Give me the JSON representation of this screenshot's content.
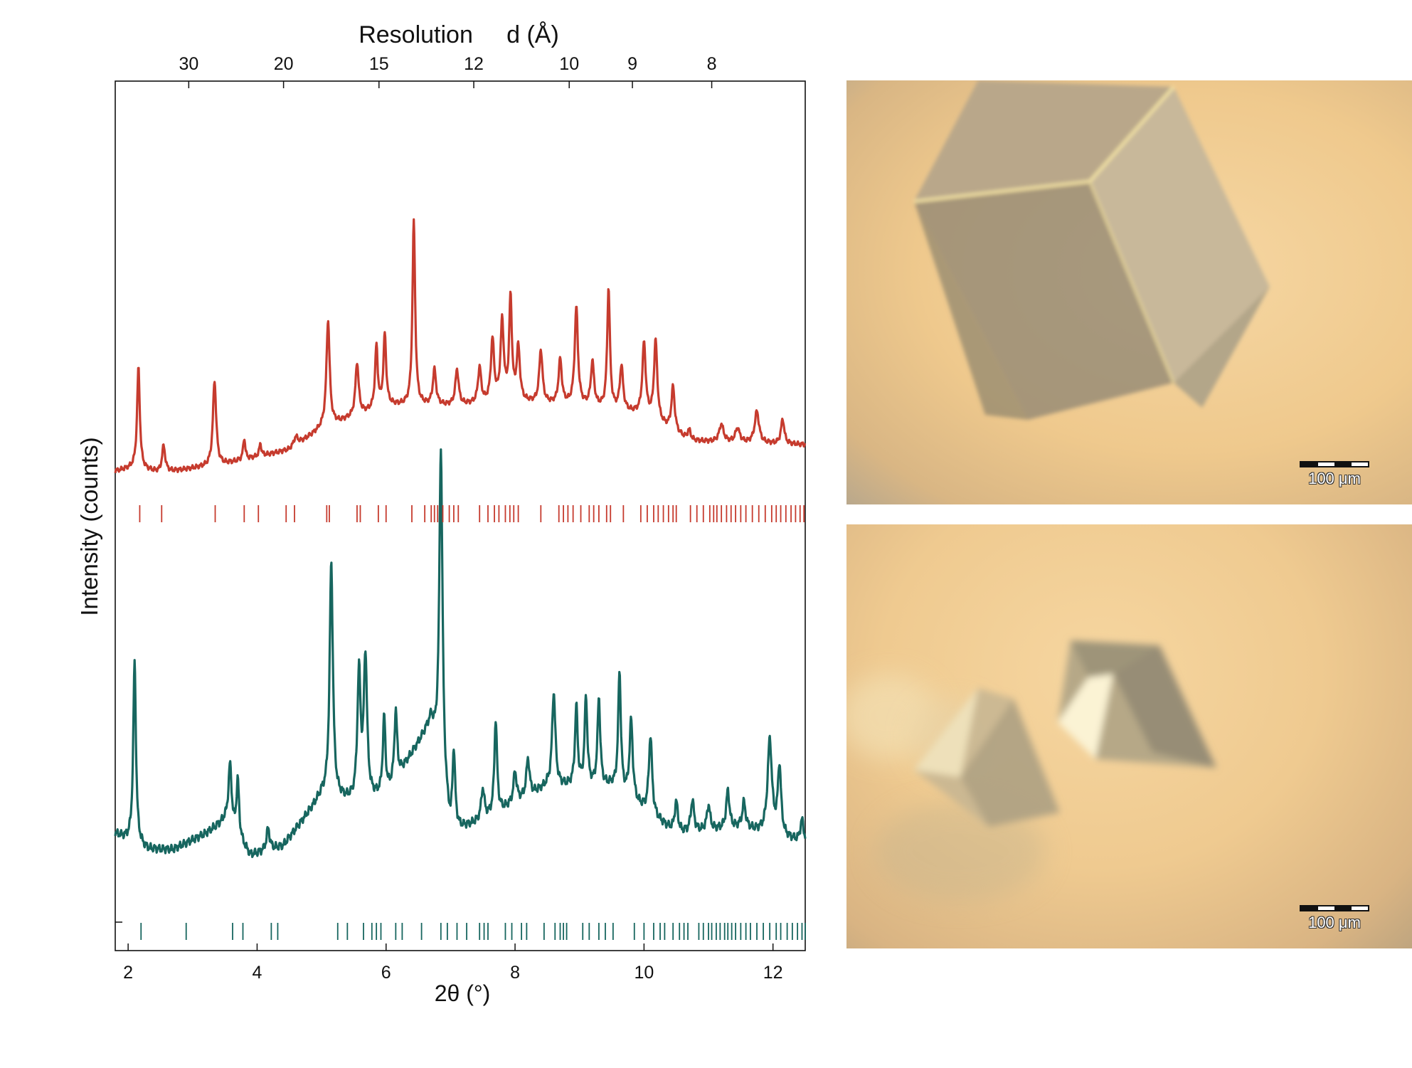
{
  "chart_data": {
    "type": "line",
    "title": "",
    "xlabel": "2θ (°)",
    "ylabel": "Intensity (counts)",
    "top_axis_label": "Resolution     d (Å)",
    "xlim": [
      1.8,
      12.5
    ],
    "x_ticks": [
      2,
      4,
      6,
      8,
      10,
      12
    ],
    "top_ticks": [
      {
        "label": "30",
        "theta": 2.94
      },
      {
        "label": "20",
        "theta": 4.41
      },
      {
        "label": "15",
        "theta": 5.89
      },
      {
        "label": "12",
        "theta": 7.36
      },
      {
        "label": "10",
        "theta": 8.84
      },
      {
        "label": "9",
        "theta": 9.82
      },
      {
        "label": "8",
        "theta": 11.05
      }
    ],
    "grid": false,
    "series": [
      {
        "color": "#c63b2e",
        "baseline": [
          [
            1.8,
            0.08
          ],
          [
            2.1,
            0.1
          ],
          [
            2.5,
            0.07
          ],
          [
            3.5,
            0.12
          ],
          [
            4.5,
            0.2
          ],
          [
            5.0,
            0.32
          ],
          [
            6.0,
            0.45
          ],
          [
            7.0,
            0.45
          ],
          [
            8.0,
            0.47
          ],
          [
            9.0,
            0.45
          ],
          [
            10.0,
            0.4
          ],
          [
            10.7,
            0.25
          ],
          [
            11.5,
            0.24
          ],
          [
            12.5,
            0.23
          ]
        ],
        "peaks": [
          [
            2.16,
            0.57,
            0.025
          ],
          [
            2.55,
            0.15,
            0.03
          ],
          [
            3.34,
            0.48,
            0.03
          ],
          [
            3.8,
            0.12,
            0.02
          ],
          [
            4.05,
            0.07,
            0.02
          ],
          [
            4.6,
            0.05,
            0.04
          ],
          [
            5.1,
            0.6,
            0.03
          ],
          [
            5.55,
            0.3,
            0.03
          ],
          [
            5.85,
            0.35,
            0.025
          ],
          [
            5.98,
            0.4,
            0.025
          ],
          [
            6.43,
            1.04,
            0.025
          ],
          [
            6.75,
            0.2,
            0.03
          ],
          [
            7.1,
            0.2,
            0.03
          ],
          [
            7.45,
            0.2,
            0.03
          ],
          [
            7.65,
            0.35,
            0.03
          ],
          [
            7.8,
            0.45,
            0.03
          ],
          [
            7.93,
            0.58,
            0.025
          ],
          [
            8.05,
            0.3,
            0.03
          ],
          [
            8.4,
            0.3,
            0.03
          ],
          [
            8.7,
            0.25,
            0.03
          ],
          [
            8.95,
            0.55,
            0.03
          ],
          [
            9.2,
            0.25,
            0.03
          ],
          [
            9.45,
            0.68,
            0.025
          ],
          [
            9.65,
            0.25,
            0.03
          ],
          [
            10.0,
            0.4,
            0.03
          ],
          [
            10.18,
            0.45,
            0.03
          ],
          [
            10.45,
            0.25,
            0.03
          ],
          [
            10.7,
            0.06,
            0.03
          ],
          [
            11.2,
            0.1,
            0.04
          ],
          [
            11.45,
            0.08,
            0.04
          ],
          [
            11.75,
            0.18,
            0.04
          ],
          [
            12.15,
            0.14,
            0.03
          ]
        ],
        "ticks": [
          2.18,
          2.52,
          3.35,
          3.8,
          4.02,
          4.45,
          4.58,
          5.08,
          5.12,
          5.55,
          5.6,
          5.88,
          6.0,
          6.4,
          6.6,
          6.7,
          6.75,
          6.8,
          6.88,
          6.98,
          7.05,
          7.12,
          7.45,
          7.58,
          7.68,
          7.75,
          7.85,
          7.92,
          7.98,
          8.05,
          8.4,
          8.68,
          8.75,
          8.82,
          8.9,
          9.02,
          9.15,
          9.22,
          9.3,
          9.42,
          9.48,
          9.68,
          9.95,
          10.05,
          10.15,
          10.22,
          10.3,
          10.38,
          10.45,
          10.5,
          10.72,
          10.82,
          10.92,
          11.02,
          11.08,
          11.13,
          11.2,
          11.28,
          11.35,
          11.42,
          11.5,
          11.58,
          11.68,
          11.78,
          11.88,
          11.98,
          12.05,
          12.12,
          12.2,
          12.28,
          12.35,
          12.42,
          12.48
        ]
      },
      {
        "color": "#17665f",
        "baseline": [
          [
            1.8,
            0.1
          ],
          [
            2.3,
            0.05
          ],
          [
            2.7,
            0.05
          ],
          [
            3.2,
            0.1
          ],
          [
            3.5,
            0.14
          ],
          [
            3.9,
            0.03
          ],
          [
            4.4,
            0.06
          ],
          [
            5.0,
            0.22
          ],
          [
            5.5,
            0.2
          ],
          [
            6.0,
            0.22
          ],
          [
            6.7,
            0.45
          ],
          [
            7.0,
            0.1
          ],
          [
            7.5,
            0.14
          ],
          [
            8.5,
            0.25
          ],
          [
            9.5,
            0.25
          ],
          [
            10.5,
            0.1
          ],
          [
            11.5,
            0.12
          ],
          [
            12.5,
            0.07
          ]
        ],
        "peaks": [
          [
            2.1,
            0.58,
            0.025
          ],
          [
            3.58,
            0.2,
            0.03
          ],
          [
            3.7,
            0.18,
            0.025
          ],
          [
            4.17,
            0.07,
            0.03
          ],
          [
            5.15,
            0.75,
            0.03
          ],
          [
            5.58,
            0.4,
            0.03
          ],
          [
            5.68,
            0.45,
            0.03
          ],
          [
            5.97,
            0.25,
            0.025
          ],
          [
            6.15,
            0.22,
            0.025
          ],
          [
            6.85,
            1.05,
            0.03
          ],
          [
            7.05,
            0.25,
            0.025
          ],
          [
            7.5,
            0.1,
            0.03
          ],
          [
            7.7,
            0.3,
            0.025
          ],
          [
            8.0,
            0.1,
            0.03
          ],
          [
            8.2,
            0.12,
            0.03
          ],
          [
            8.6,
            0.3,
            0.03
          ],
          [
            8.95,
            0.25,
            0.025
          ],
          [
            9.1,
            0.28,
            0.025
          ],
          [
            9.3,
            0.28,
            0.025
          ],
          [
            9.62,
            0.38,
            0.025
          ],
          [
            9.8,
            0.25,
            0.03
          ],
          [
            10.1,
            0.25,
            0.03
          ],
          [
            10.5,
            0.1,
            0.03
          ],
          [
            10.75,
            0.1,
            0.03
          ],
          [
            11.0,
            0.08,
            0.03
          ],
          [
            11.3,
            0.12,
            0.03
          ],
          [
            11.55,
            0.08,
            0.03
          ],
          [
            11.95,
            0.3,
            0.04
          ],
          [
            12.1,
            0.22,
            0.03
          ],
          [
            12.45,
            0.07,
            0.03
          ]
        ],
        "ticks": [
          2.2,
          2.9,
          3.62,
          3.78,
          4.22,
          4.32,
          5.25,
          5.4,
          5.65,
          5.78,
          5.85,
          5.92,
          6.15,
          6.25,
          6.55,
          6.85,
          6.95,
          7.1,
          7.25,
          7.45,
          7.52,
          7.58,
          7.85,
          7.95,
          8.1,
          8.18,
          8.45,
          8.62,
          8.7,
          8.75,
          8.8,
          9.05,
          9.15,
          9.3,
          9.4,
          9.52,
          9.85,
          10.0,
          10.15,
          10.25,
          10.32,
          10.45,
          10.55,
          10.62,
          10.68,
          10.85,
          10.92,
          11.0,
          11.05,
          11.12,
          11.18,
          11.25,
          11.3,
          11.36,
          11.42,
          11.5,
          11.58,
          11.65,
          11.75,
          11.85,
          11.95,
          12.05,
          12.12,
          12.22,
          12.3,
          12.38,
          12.45,
          12.5
        ]
      }
    ]
  },
  "photos": [
    {
      "scale_label": "100 μm"
    },
    {
      "scale_label": "100 μm"
    }
  ]
}
